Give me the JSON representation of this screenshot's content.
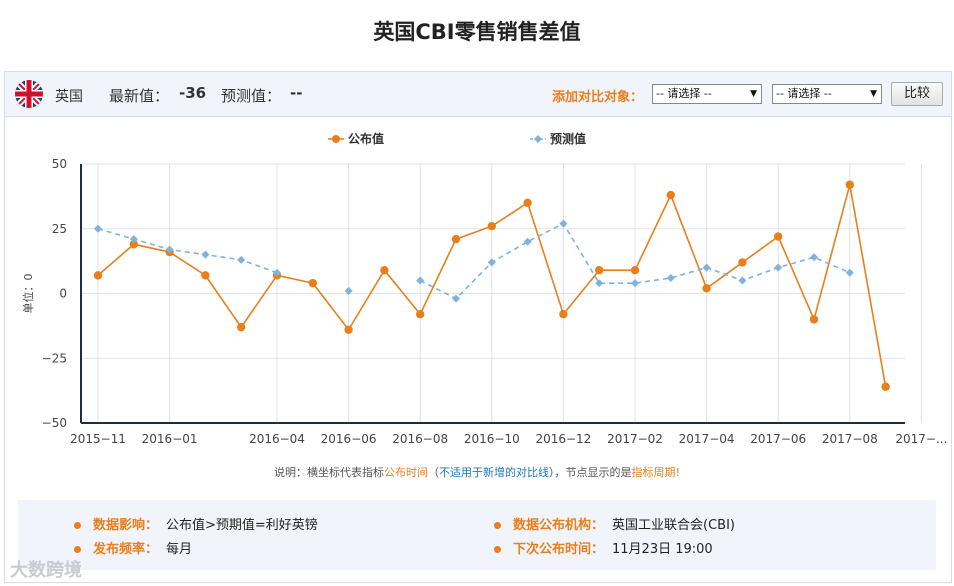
{
  "page_title": "英国CBI零售销售差值",
  "toolbar": {
    "flag_icon": "uk-flag-icon",
    "country": "英国",
    "latest_label": "最新值：",
    "latest_value": "-36",
    "forecast_label": "预测值：",
    "forecast_value": "--",
    "compare_label": "添加对比对象：",
    "select1": "-- 请选择 --",
    "select2": "-- 请选择 --",
    "compare_button": "比较"
  },
  "note": {
    "p1": "说明：横坐标代表指标",
    "p2": "公布时间",
    "p3": "（",
    "p4": "不适用于新增的对比线",
    "p5": "），节点显示的是",
    "p6": "指标周期",
    "p7": "!"
  },
  "info": {
    "impact_label": "数据影响：",
    "impact_value": "公布值>预期值=利好英镑",
    "agency_label": "数据公布机构：",
    "agency_value": "英国工业联合会(CBI)",
    "freq_label": "发布频率：",
    "freq_value": "每月",
    "next_label": "下次公布时间：",
    "next_value": "11月23日 19:00"
  },
  "watermark": "大数跨境",
  "colors": {
    "actual": "#e97f1c",
    "forecast": "#7fb2dd",
    "accent": "#e97f1c"
  },
  "chart_data": {
    "type": "line",
    "ylabel": "单位：0",
    "ylim": [
      -50,
      50
    ],
    "yticks": [
      50,
      25,
      0,
      -25,
      -50
    ],
    "x_labels": [
      "2015-11",
      "2016-01",
      "2016-04",
      "2016-06",
      "2016-08",
      "2016-10",
      "2016-12",
      "2017-02",
      "2017-04",
      "2017-06",
      "2017-08",
      "2017-..."
    ],
    "x": [
      "2015-11",
      "2015-12",
      "2016-01",
      "2016-02",
      "2016-03",
      "2016-04",
      "2016-05",
      "2016-06",
      "2016-07",
      "2016-08",
      "2016-09",
      "2016-10",
      "2016-11",
      "2016-12",
      "2017-01",
      "2017-02",
      "2017-03",
      "2017-04",
      "2017-05",
      "2017-06",
      "2017-07",
      "2017-08",
      "2017-09",
      "2017-10"
    ],
    "grid": true,
    "legend": "top-center",
    "series": [
      {
        "name": "公布值",
        "values": [
          7,
          19,
          16,
          7,
          -13,
          7,
          4,
          -14,
          9,
          -8,
          21,
          26,
          35,
          -8,
          9,
          9,
          38,
          2,
          12,
          22,
          -10,
          42,
          -36,
          null
        ]
      },
      {
        "name": "预测值",
        "values": [
          25,
          21,
          17,
          15,
          13,
          8,
          null,
          1,
          null,
          5,
          -2,
          12,
          20,
          27,
          4,
          4,
          6,
          10,
          5,
          10,
          14,
          8,
          null,
          null
        ]
      }
    ]
  }
}
